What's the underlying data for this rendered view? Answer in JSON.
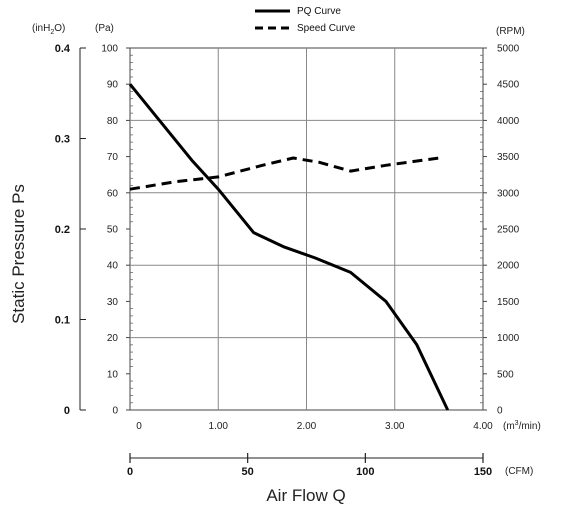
{
  "chart_data": {
    "type": "line",
    "legend": {
      "placement": "top-center"
    },
    "grid": true,
    "series": [
      {
        "name": "PQ Curve",
        "axis": "Pa",
        "style": "solid",
        "x": [
          0,
          0.3,
          0.7,
          1.0,
          1.4,
          1.75,
          2.1,
          2.5,
          2.9,
          3.25,
          3.6
        ],
        "y": [
          90,
          81,
          69,
          61,
          49,
          45,
          42,
          38,
          30,
          18,
          0
        ]
      },
      {
        "name": "Speed Curve",
        "axis": "RPM",
        "style": "dashed",
        "x": [
          0,
          0.5,
          1.0,
          1.5,
          1.85,
          2.15,
          2.5,
          2.9,
          3.5
        ],
        "y": [
          3050,
          3150,
          3220,
          3380,
          3480,
          3420,
          3300,
          3380,
          3480
        ]
      }
    ],
    "left_pressure_axis": {
      "unit": "(Pa)",
      "range": [
        0,
        100
      ],
      "ticks": [
        "0",
        "10",
        "20",
        "30",
        "40",
        "50",
        "60",
        "70",
        "80",
        "90",
        "100"
      ]
    },
    "left_inh2o_axis": {
      "unit_prefix": "(inH",
      "unit_sub": "2",
      "unit_suffix": "O)",
      "ticks": [
        "0",
        "0.1",
        "0.2",
        "0.3",
        "0.4"
      ],
      "values": [
        0,
        0.1,
        0.2,
        0.3,
        0.4
      ]
    },
    "ylabel": "Static Pressure Ps",
    "right_axis": {
      "unit": "(RPM)",
      "range": [
        0,
        5000
      ],
      "ticks": [
        "0",
        "500",
        "1000",
        "1500",
        "2000",
        "2500",
        "3000",
        "3500",
        "4000",
        "4500",
        "5000"
      ]
    },
    "x_axis": {
      "unit_prefix": "(m",
      "unit_sup": "3",
      "unit_suffix": "/min)",
      "range": [
        0,
        4.0
      ],
      "ticks": [
        "0",
        "1.00",
        "2.00",
        "3.00",
        "4.00"
      ],
      "values": [
        0,
        1,
        2,
        3,
        4
      ]
    },
    "cfm_axis": {
      "unit": "(CFM)",
      "range": [
        0,
        150
      ],
      "ticks": [
        "0",
        "50",
        "100",
        "150"
      ],
      "values": [
        0,
        50,
        100,
        150
      ]
    },
    "xlabel": "Air Flow Q"
  }
}
